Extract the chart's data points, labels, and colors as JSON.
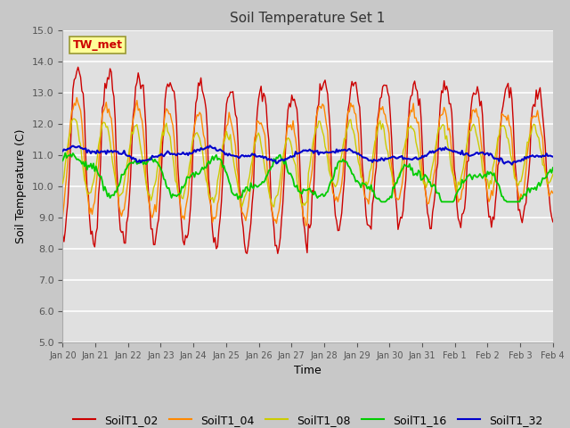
{
  "title": "Soil Temperature Set 1",
  "xlabel": "Time",
  "ylabel": "Soil Temperature (C)",
  "ylim": [
    5.0,
    15.0
  ],
  "yticks": [
    5.0,
    6.0,
    7.0,
    8.0,
    9.0,
    10.0,
    11.0,
    12.0,
    13.0,
    14.0,
    15.0
  ],
  "date_labels": [
    "Jan 20",
    "Jan 21",
    "Jan 22",
    "Jan 23",
    "Jan 24",
    "Jan 25",
    "Jan 26",
    "Jan 27",
    "Jan 28",
    "Jan 29",
    "Jan 30",
    "Jan 31",
    "Feb 1",
    "Feb 2",
    "Feb 3",
    "Feb 4"
  ],
  "series_colors": {
    "SoilT1_02": "#cc0000",
    "SoilT1_04": "#ff8800",
    "SoilT1_08": "#cccc00",
    "SoilT1_16": "#00cc00",
    "SoilT1_32": "#0000cc"
  },
  "annotation_text": "TW_met",
  "annotation_color": "#cc0000",
  "annotation_bg": "#ffff99",
  "fig_bg_color": "#c8c8c8",
  "plot_bg_color": "#e0e0e0",
  "grid_color": "#ffffff",
  "title_fontsize": 11,
  "axis_fontsize": 9,
  "tick_fontsize": 8,
  "legend_fontsize": 9
}
